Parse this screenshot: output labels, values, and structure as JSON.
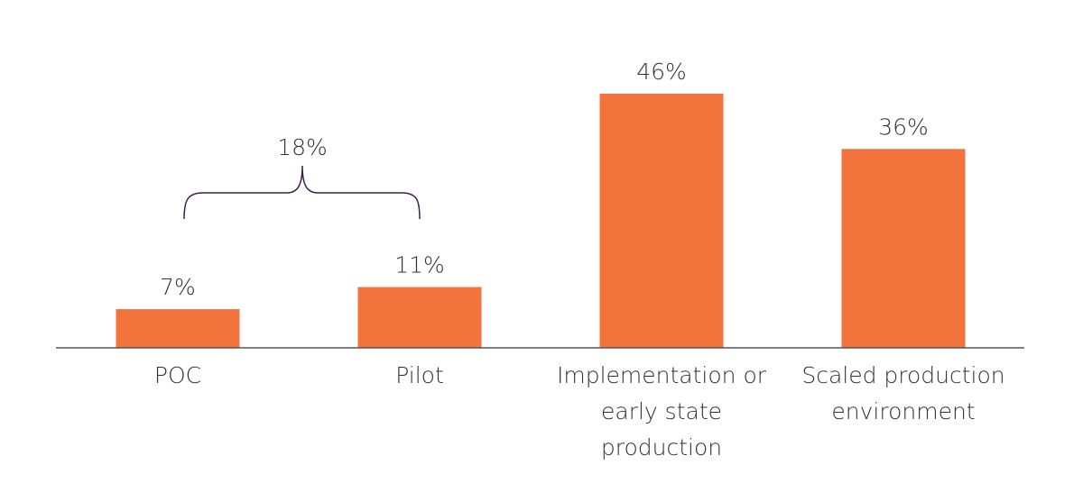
{
  "chart_data": {
    "type": "bar",
    "title": "",
    "xlabel": "",
    "ylabel": "",
    "categories": [
      [
        "POC"
      ],
      [
        "Pilot"
      ],
      [
        "Implementation or",
        "early state",
        "production"
      ],
      [
        "Scaled production",
        "environment"
      ]
    ],
    "values": [
      7,
      11,
      46,
      36
    ],
    "value_labels": [
      "7%",
      "11%",
      "46%",
      "36%"
    ],
    "ylim": [
      0,
      50
    ],
    "grid": false,
    "annotation": {
      "label": "18%",
      "spans_categories": [
        0,
        1
      ],
      "value": 18
    },
    "colors": {
      "bar": "#F2743C",
      "brace": "#3B1E4A",
      "text": "#333333",
      "axis": "#555555"
    }
  }
}
